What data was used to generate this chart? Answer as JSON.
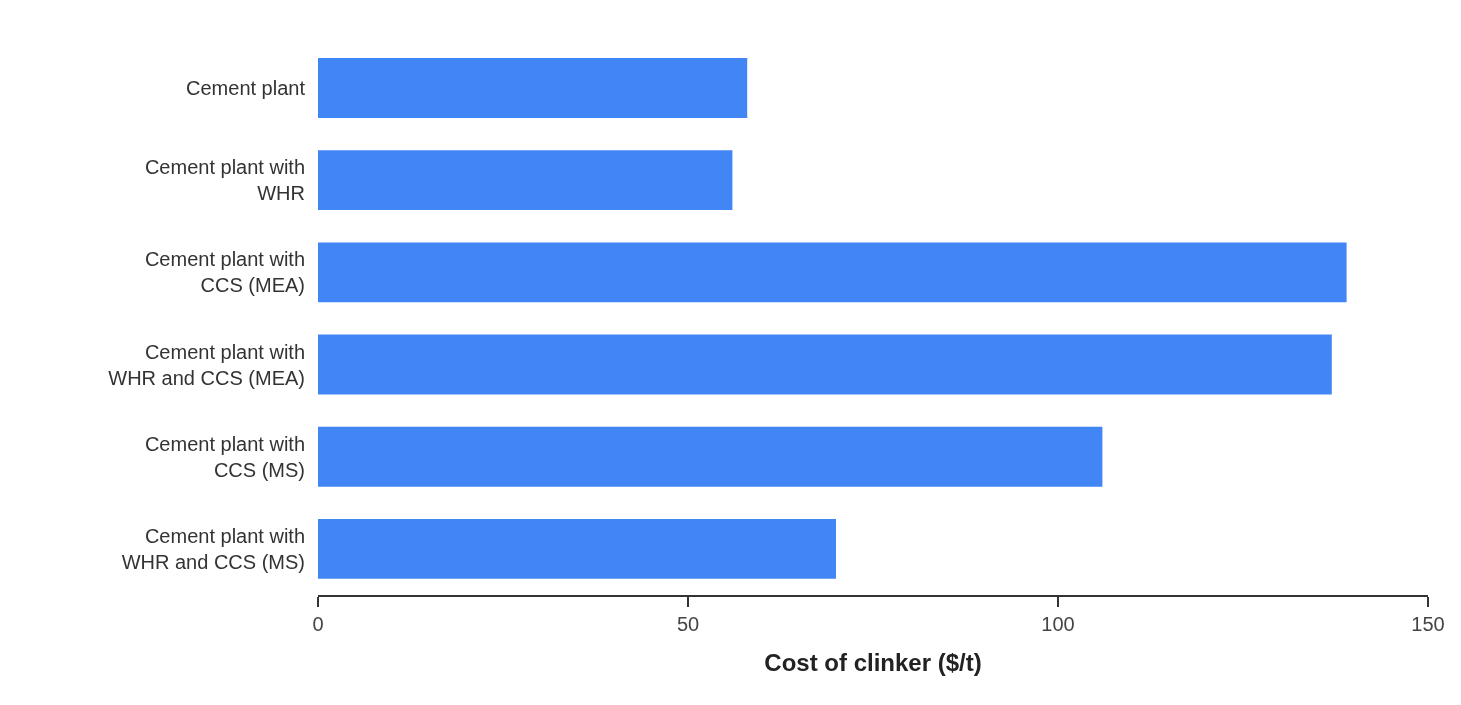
{
  "chart_data": {
    "type": "bar",
    "orientation": "horizontal",
    "categories": [
      "Cement plant",
      "Cement plant with WHR",
      "Cement plant with CCS (MEA)",
      "Cement plant with WHR and CCS (MEA)",
      "Cement plant with CCS (MS)",
      "Cement plant with WHR and CCS (MS)"
    ],
    "values": [
      58,
      56,
      139,
      137,
      106,
      70
    ],
    "color": "#4285f4",
    "xlabel": "Cost of clinker ($/t)",
    "xlim": [
      0,
      150
    ],
    "xticks": [
      0,
      50,
      100,
      150
    ],
    "grid": false
  }
}
